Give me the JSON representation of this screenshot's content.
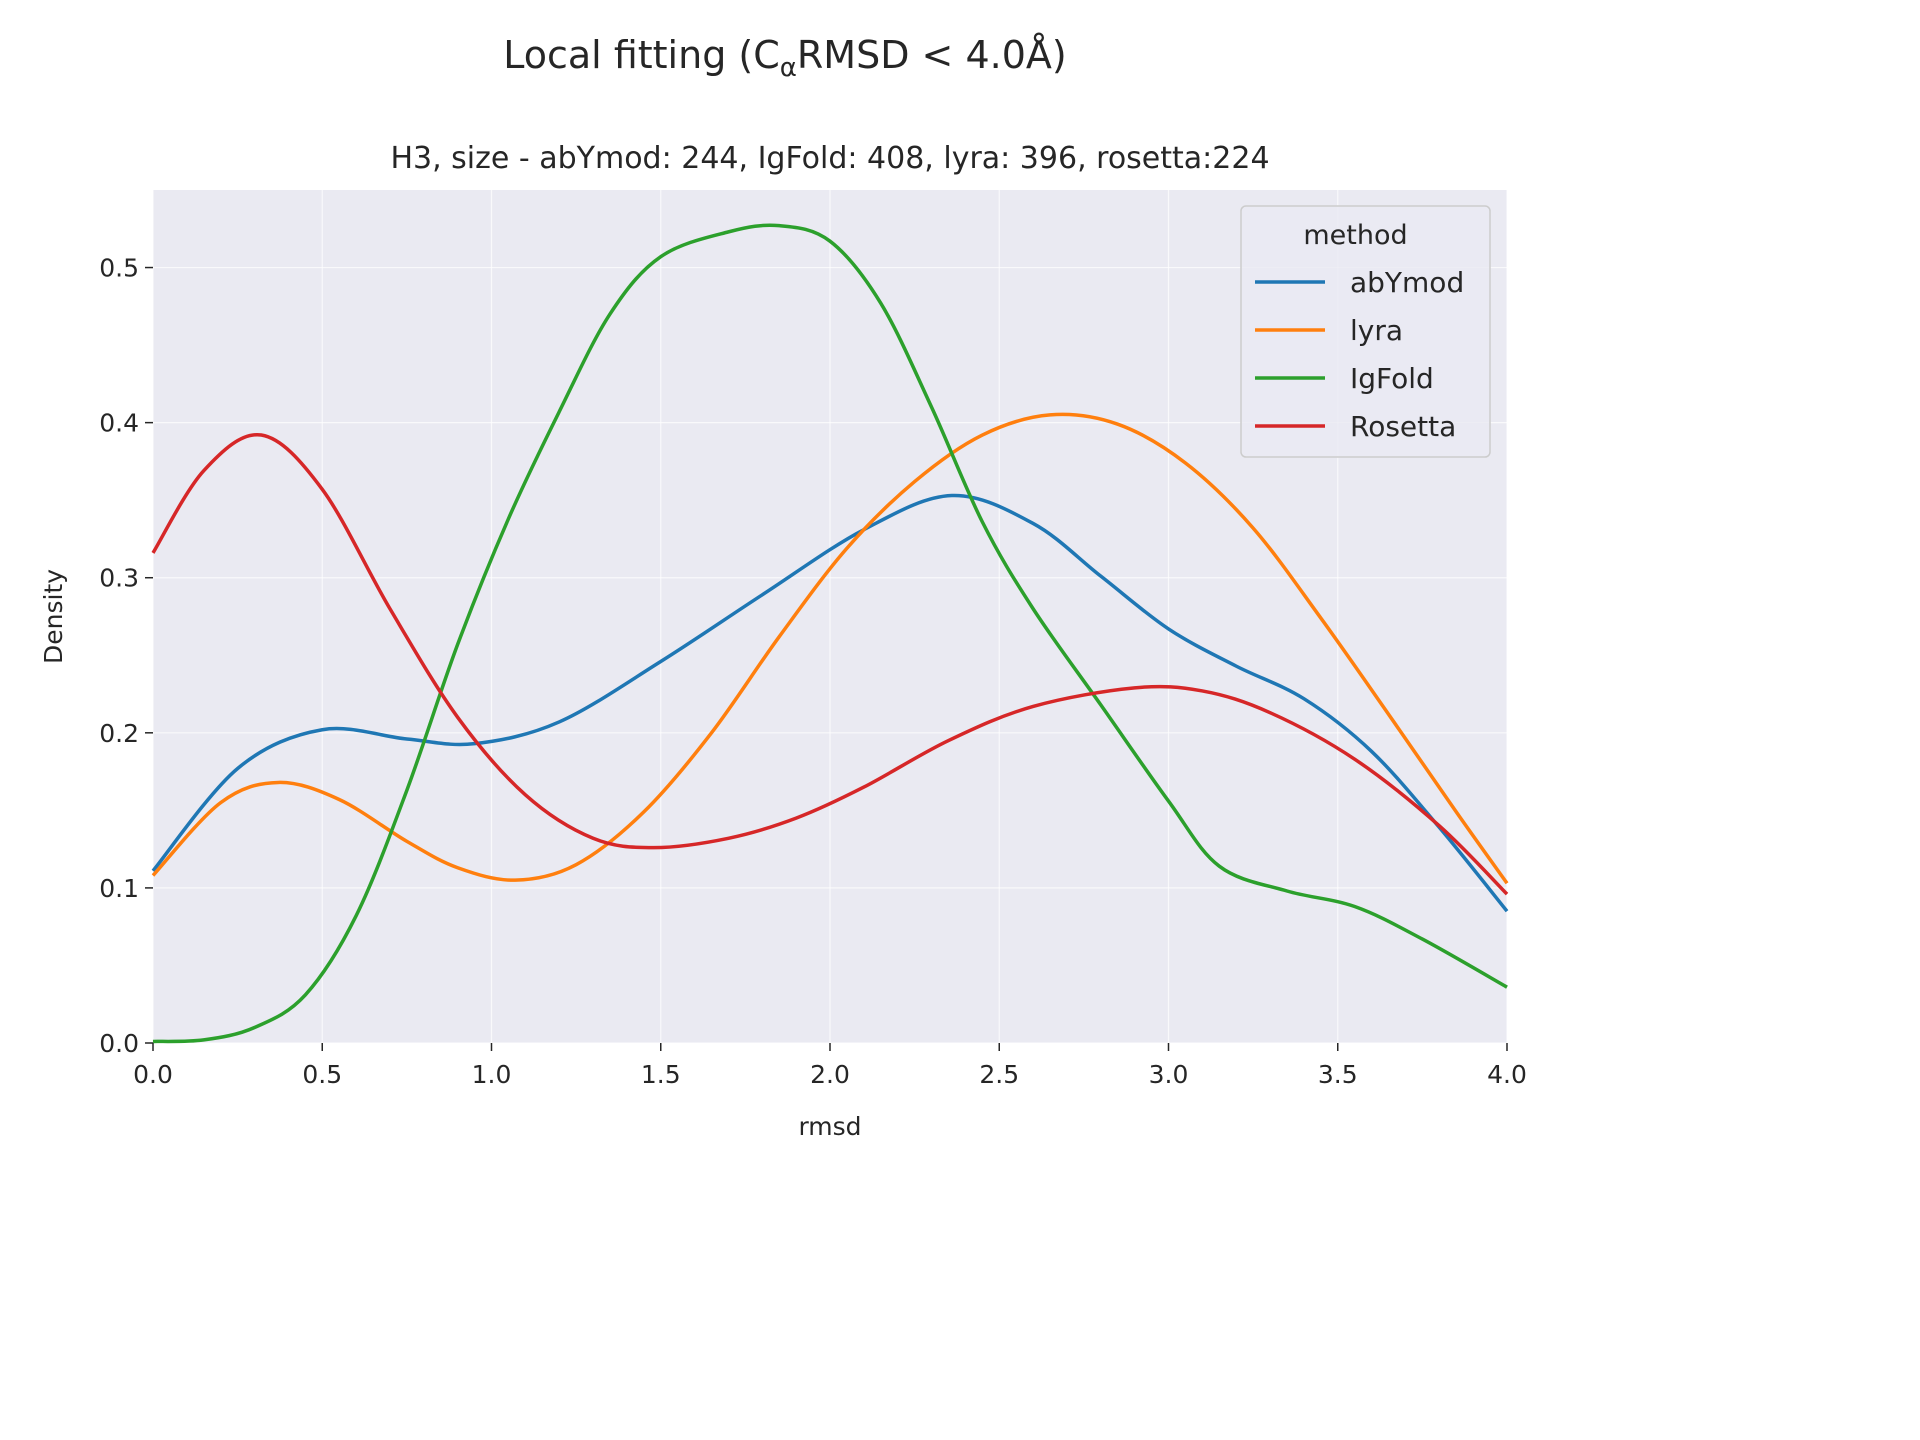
{
  "chart_data": {
    "type": "line",
    "suptitle": "Local fitting (CαRMSD  < 4.0Å)",
    "suptitle_parts": {
      "pre": "Local fitting (C",
      "sub": "α",
      "post": "RMSD  < 4.0Å)"
    },
    "title": "H3, size - abYmod: 244, IgFold: 408, lyra: 396, rosetta:224",
    "xlabel": "rmsd",
    "ylabel": "Density",
    "xlim": [
      0,
      4
    ],
    "ylim": [
      0,
      0.55
    ],
    "xticks": [
      "0.0",
      "0.5",
      "1.0",
      "1.5",
      "2.0",
      "2.5",
      "3.0",
      "3.5",
      "4.0"
    ],
    "yticks": [
      "0.0",
      "0.1",
      "0.2",
      "0.3",
      "0.4",
      "0.5"
    ],
    "grid": true,
    "background": "#eaeaf2",
    "legend": {
      "title": "method",
      "placement": "top-right"
    },
    "series": [
      {
        "name": "abYmod",
        "color": "#1f77b4",
        "x": [
          0,
          0.25,
          0.5,
          0.75,
          0.95,
          1.2,
          1.5,
          1.8,
          2.1,
          2.36,
          2.6,
          2.8,
          3.0,
          3.2,
          3.4,
          3.6,
          3.8,
          4.0
        ],
        "y": [
          0.111,
          0.177,
          0.202,
          0.196,
          0.193,
          0.207,
          0.246,
          0.289,
          0.331,
          0.353,
          0.335,
          0.301,
          0.267,
          0.243,
          0.222,
          0.188,
          0.139,
          0.085
        ]
      },
      {
        "name": "lyra",
        "color": "#ff7f0e",
        "x": [
          0,
          0.2,
          0.37,
          0.55,
          0.75,
          0.9,
          1.07,
          1.25,
          1.45,
          1.65,
          1.85,
          2.05,
          2.25,
          2.45,
          2.65,
          2.85,
          3.05,
          3.25,
          3.45,
          3.65,
          3.85,
          4.0
        ],
        "y": [
          0.108,
          0.155,
          0.168,
          0.157,
          0.13,
          0.113,
          0.105,
          0.115,
          0.149,
          0.2,
          0.262,
          0.319,
          0.362,
          0.392,
          0.405,
          0.399,
          0.374,
          0.332,
          0.274,
          0.212,
          0.149,
          0.103
        ]
      },
      {
        "name": "IgFold",
        "color": "#2ca02c",
        "x": [
          0,
          0.15,
          0.3,
          0.45,
          0.6,
          0.75,
          0.9,
          1.05,
          1.2,
          1.35,
          1.5,
          1.7,
          1.85,
          2.0,
          2.15,
          2.3,
          2.45,
          2.6,
          2.8,
          3.0,
          3.15,
          3.35,
          3.55,
          3.75,
          4.0
        ],
        "y": [
          0.001,
          0.002,
          0.01,
          0.031,
          0.082,
          0.163,
          0.257,
          0.338,
          0.407,
          0.47,
          0.507,
          0.523,
          0.527,
          0.517,
          0.477,
          0.41,
          0.336,
          0.28,
          0.218,
          0.156,
          0.114,
          0.098,
          0.088,
          0.067,
          0.036
        ]
      },
      {
        "name": "Rosetta",
        "color": "#d62728",
        "x": [
          0,
          0.15,
          0.32,
          0.5,
          0.7,
          0.9,
          1.1,
          1.3,
          1.48,
          1.7,
          1.9,
          2.1,
          2.35,
          2.6,
          2.9,
          3.1,
          3.3,
          3.55,
          3.8,
          4.0
        ],
        "y": [
          0.316,
          0.369,
          0.392,
          0.357,
          0.28,
          0.21,
          0.16,
          0.132,
          0.126,
          0.132,
          0.145,
          0.165,
          0.195,
          0.217,
          0.229,
          0.227,
          0.213,
          0.183,
          0.14,
          0.096
        ]
      }
    ]
  }
}
